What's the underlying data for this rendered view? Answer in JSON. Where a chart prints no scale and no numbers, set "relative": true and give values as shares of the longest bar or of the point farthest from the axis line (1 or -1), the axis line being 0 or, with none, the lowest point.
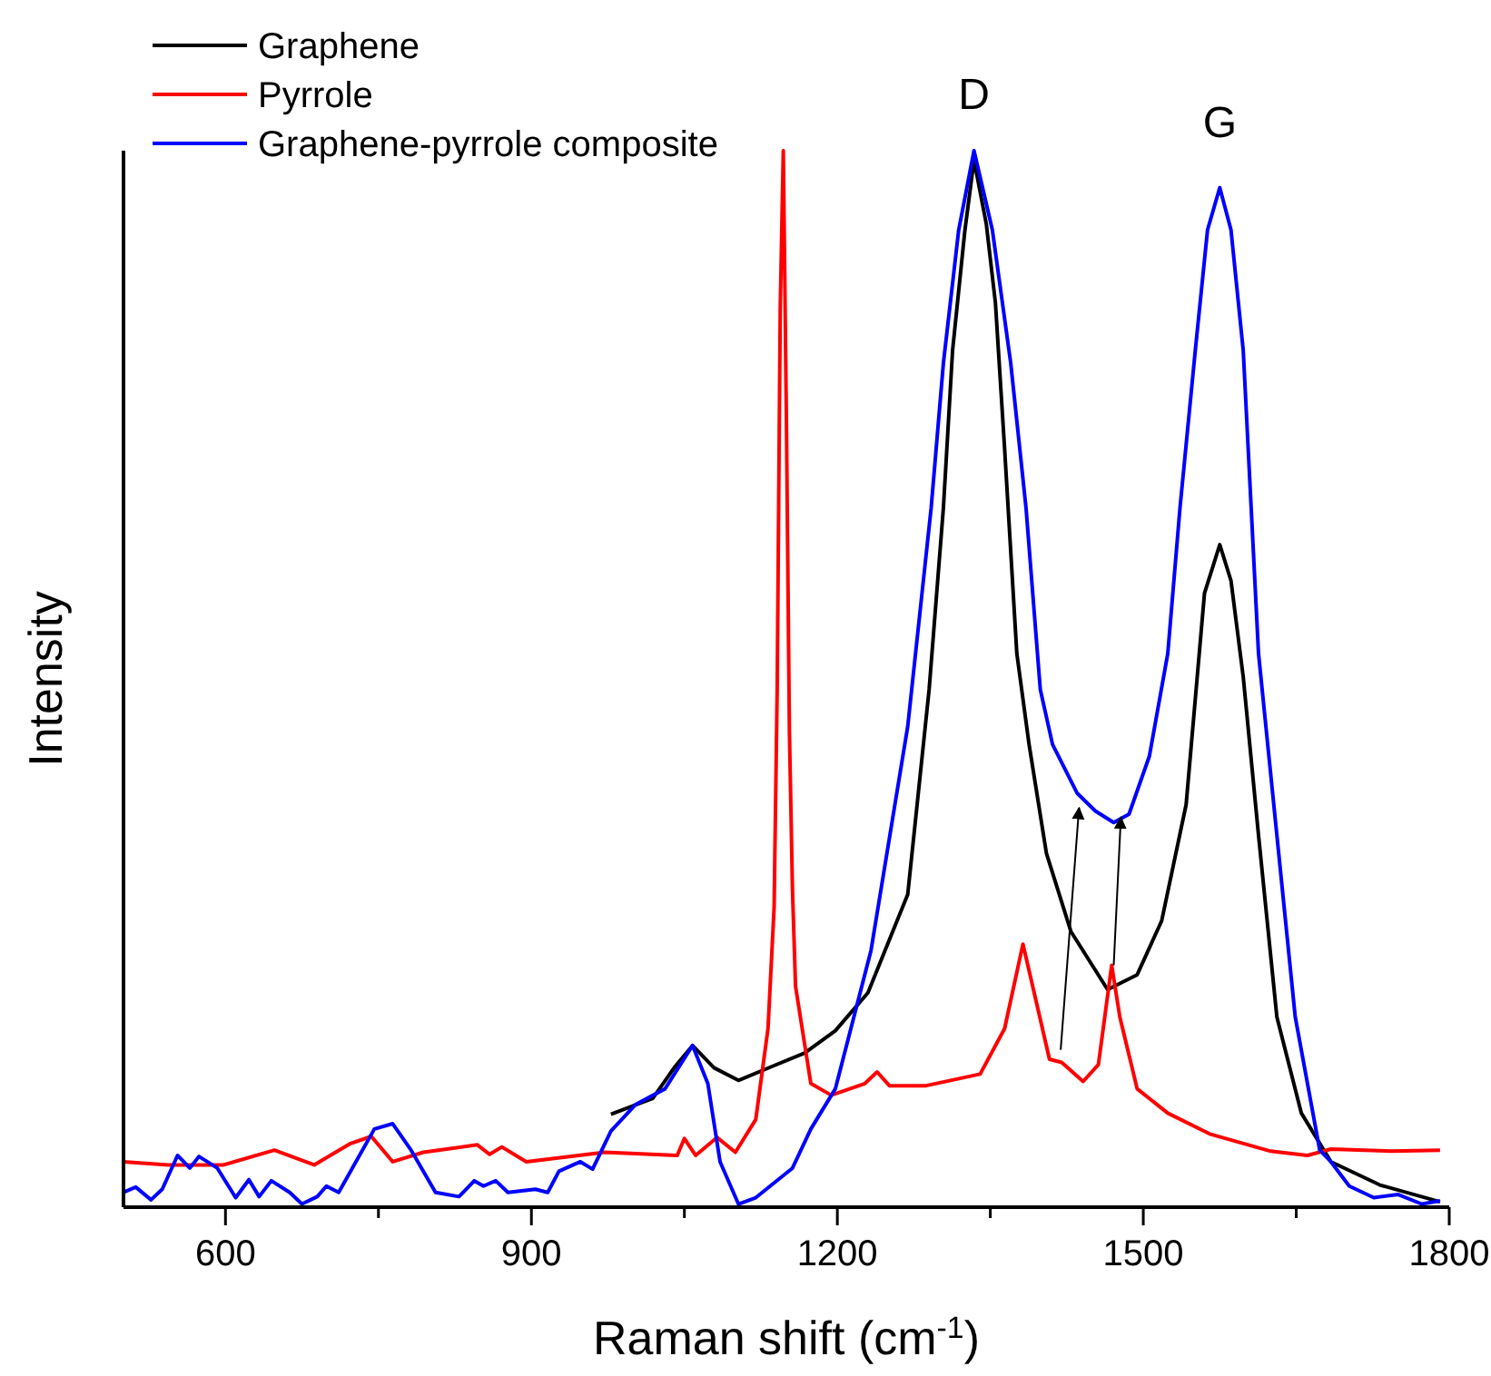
{
  "chart_data": {
    "type": "line",
    "relative": true,
    "xlabel": "Raman shift (cm$^{-1}$)",
    "ylabel": "Intensity",
    "xlim": [
      500,
      1800
    ],
    "xticks": [
      600,
      {
        "value": 750,
        "label": null
      },
      900,
      {
        "value": 1050,
        "label": null
      },
      1200,
      {
        "value": 1350,
        "label": null
      },
      1500,
      {
        "value": 1650,
        "label": null
      },
      1800
    ],
    "legend": "top left",
    "grid": false,
    "marker": "none",
    "line_style": "solid",
    "annotations": [
      {
        "text": "D",
        "x": 1334,
        "y": 0.991
      },
      {
        "text": "G",
        "x": 1575,
        "y": 0.965
      }
    ],
    "series": [
      {
        "name": "Graphene",
        "color": "#000000",
        "x": [
          978,
          1019,
          1040,
          1058,
          1079,
          1103,
          1138,
          1168,
          1198,
          1230,
          1269,
          1290,
          1304,
          1313,
          1325,
          1334,
          1346,
          1355,
          1364,
          1376,
          1388,
          1405,
          1429,
          1465,
          1494,
          1518,
          1542,
          1560,
          1575,
          1586,
          1598,
          1613,
          1631,
          1655,
          1684,
          1732,
          1791
        ],
        "values": [
          0.088,
          0.103,
          0.132,
          0.153,
          0.132,
          0.12,
          0.134,
          0.146,
          0.167,
          0.203,
          0.296,
          0.49,
          0.662,
          0.811,
          0.924,
          0.991,
          0.931,
          0.856,
          0.718,
          0.524,
          0.438,
          0.335,
          0.261,
          0.206,
          0.22,
          0.271,
          0.381,
          0.581,
          0.627,
          0.593,
          0.502,
          0.352,
          0.18,
          0.089,
          0.043,
          0.021,
          0.005
        ]
      },
      {
        "name": "Pyrrole",
        "color": "#ff0000",
        "x": [
          500,
          544,
          598,
          648,
          687,
          722,
          743,
          764,
          794,
          847,
          859,
          871,
          895,
          972,
          1043,
          1050,
          1061,
          1082,
          1100,
          1120,
          1132,
          1138,
          1141,
          1144,
          1147,
          1150,
          1153,
          1156,
          1159,
          1174,
          1194,
          1227,
          1239,
          1251,
          1287,
          1340,
          1364,
          1382,
          1393,
          1408,
          1420,
          1441,
          1456,
          1469,
          1477,
          1494,
          1524,
          1566,
          1625,
          1661,
          1684,
          1744,
          1791
        ],
        "values": [
          0.043,
          0.04,
          0.04,
          0.054,
          0.04,
          0.06,
          0.067,
          0.043,
          0.052,
          0.059,
          0.05,
          0.057,
          0.043,
          0.052,
          0.049,
          0.065,
          0.049,
          0.066,
          0.052,
          0.083,
          0.169,
          0.284,
          0.49,
          0.85,
          1.0,
          0.75,
          0.45,
          0.3,
          0.209,
          0.117,
          0.106,
          0.117,
          0.128,
          0.115,
          0.115,
          0.126,
          0.169,
          0.249,
          0.203,
          0.14,
          0.137,
          0.119,
          0.135,
          0.229,
          0.18,
          0.112,
          0.089,
          0.069,
          0.053,
          0.049,
          0.055,
          0.053,
          0.054
        ]
      },
      {
        "name": "Graphene-pyrrole composite",
        "color": "#0000ff",
        "x": [
          500,
          512,
          527,
          538,
          553,
          565,
          574,
          592,
          610,
          623,
          633,
          645,
          663,
          675,
          690,
          699,
          711,
          746,
          764,
          782,
          806,
          829,
          844,
          853,
          865,
          877,
          904,
          916,
          927,
          948,
          960,
          978,
          1002,
          1031,
          1058,
          1073,
          1085,
          1103,
          1120,
          1156,
          1174,
          1198,
          1233,
          1269,
          1292,
          1304,
          1319,
          1334,
          1352,
          1370,
          1385,
          1399,
          1411,
          1435,
          1453,
          1471,
          1486,
          1506,
          1524,
          1536,
          1551,
          1563,
          1575,
          1586,
          1598,
          1613,
          1631,
          1649,
          1673,
          1684,
          1702,
          1726,
          1750,
          1773,
          1791
        ],
        "values": [
          0.014,
          0.019,
          0.007,
          0.017,
          0.049,
          0.037,
          0.048,
          0.037,
          0.009,
          0.026,
          0.01,
          0.025,
          0.014,
          0.003,
          0.01,
          0.02,
          0.014,
          0.074,
          0.079,
          0.054,
          0.014,
          0.01,
          0.025,
          0.02,
          0.025,
          0.014,
          0.017,
          0.014,
          0.034,
          0.043,
          0.036,
          0.072,
          0.097,
          0.112,
          0.153,
          0.117,
          0.043,
          0.003,
          0.009,
          0.037,
          0.074,
          0.112,
          0.243,
          0.455,
          0.662,
          0.799,
          0.925,
          1.0,
          0.925,
          0.799,
          0.662,
          0.49,
          0.438,
          0.392,
          0.375,
          0.364,
          0.372,
          0.427,
          0.524,
          0.662,
          0.811,
          0.925,
          0.965,
          0.925,
          0.811,
          0.524,
          0.352,
          0.18,
          0.054,
          0.043,
          0.02,
          0.009,
          0.012,
          0.003,
          0.006
        ]
      }
    ]
  }
}
